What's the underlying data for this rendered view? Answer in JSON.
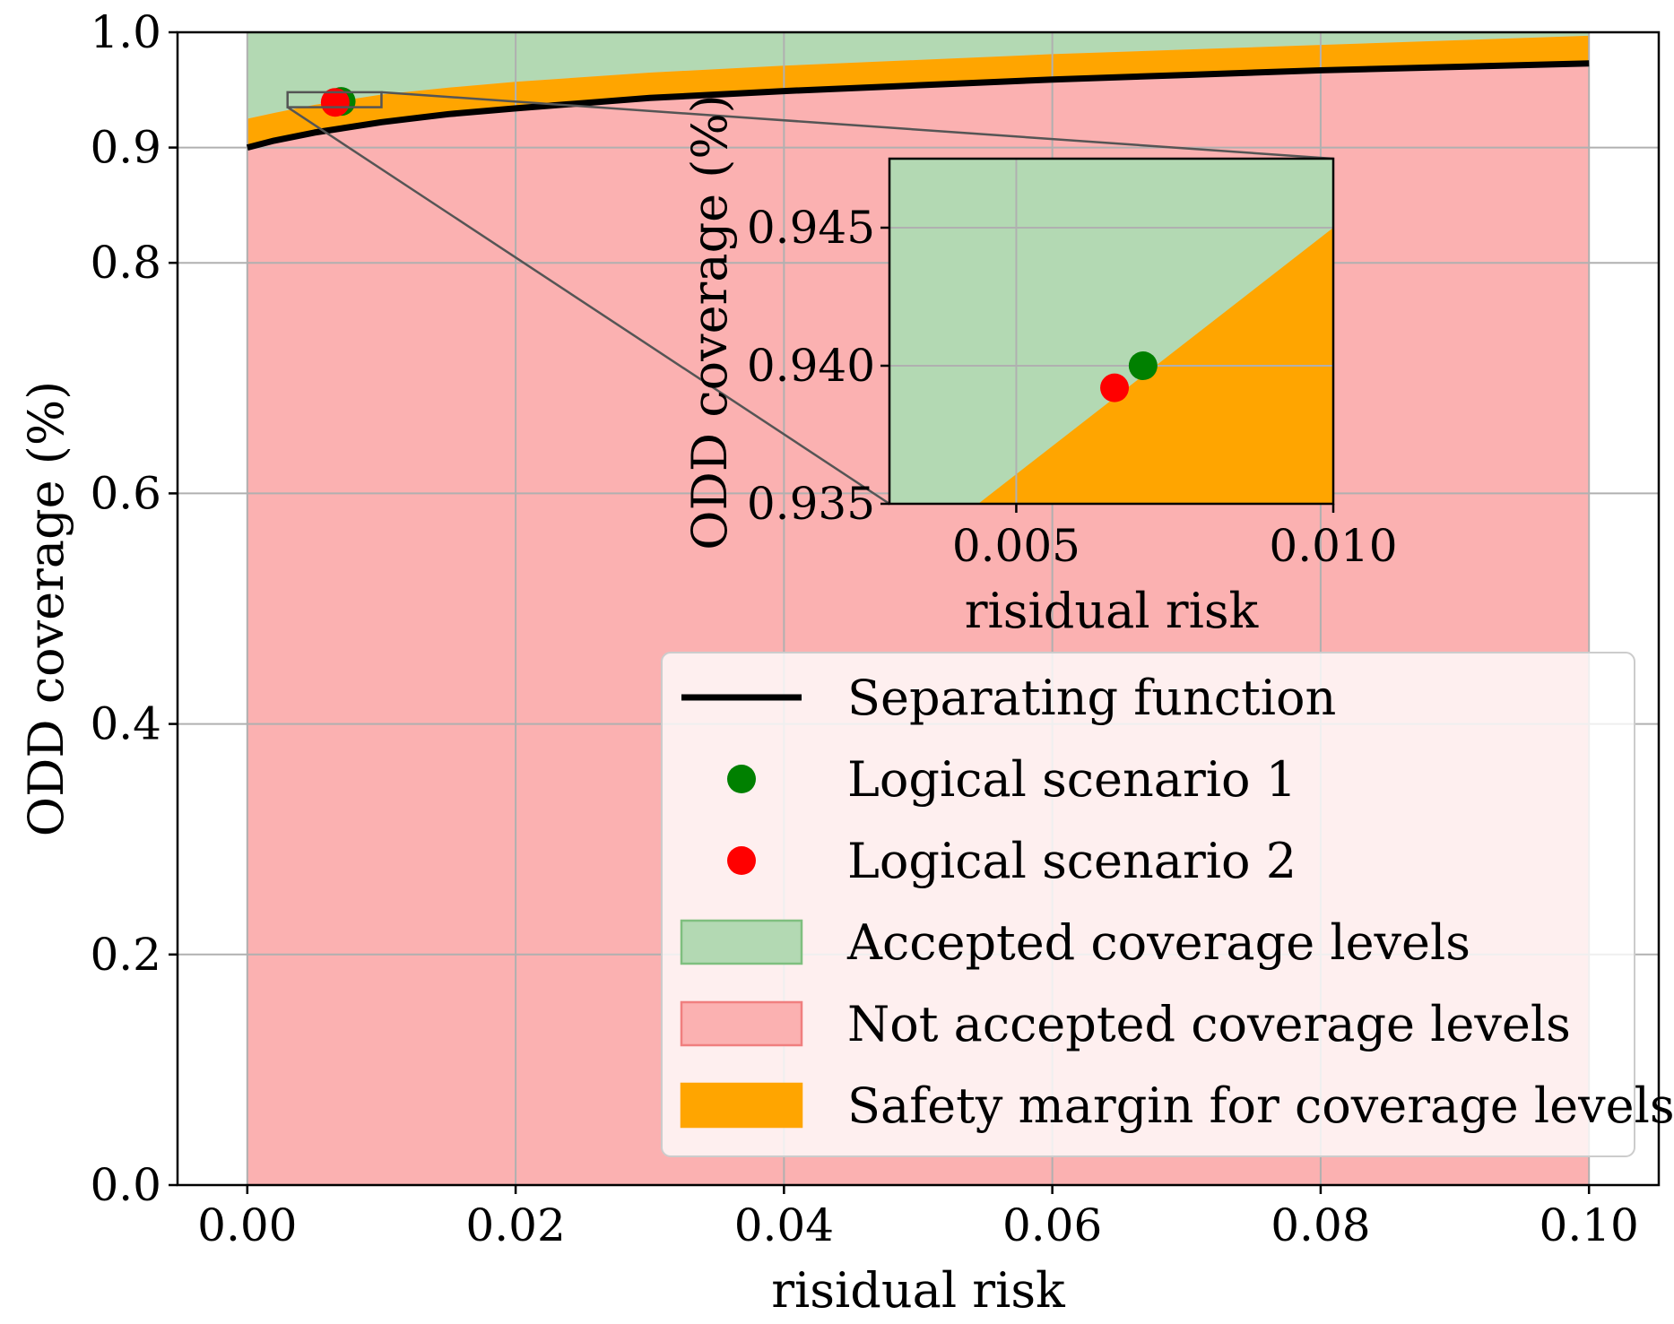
{
  "chart_data": {
    "type": "line",
    "main": {
      "xlabel": "risidual risk",
      "ylabel": "ODD coverage (%)",
      "xlim": [
        -0.0052,
        0.1052
      ],
      "ylim": [
        0.0,
        1.0
      ],
      "x_tick_values": [
        0.0,
        0.02,
        0.04,
        0.06,
        0.08,
        0.1
      ],
      "x_tick_labels": [
        "0.00",
        "0.02",
        "0.04",
        "0.06",
        "0.08",
        "0.10"
      ],
      "y_tick_values": [
        0.0,
        0.2,
        0.4,
        0.6,
        0.8,
        0.9,
        1.0
      ],
      "y_tick_labels": [
        "0.0",
        "0.2",
        "0.4",
        "0.6",
        "0.8",
        "0.9",
        "1.0"
      ],
      "grid": true,
      "shaded_x_range": [
        0.0,
        0.1
      ],
      "separating_function": {
        "x": [
          0.0,
          0.002,
          0.005,
          0.01,
          0.015,
          0.02,
          0.03,
          0.04,
          0.05,
          0.06,
          0.07,
          0.08,
          0.09,
          0.1
        ],
        "y": [
          0.9,
          0.906,
          0.913,
          0.922,
          0.929,
          0.934,
          0.943,
          0.949,
          0.954,
          0.959,
          0.963,
          0.967,
          0.97,
          0.973
        ]
      },
      "safety_margin_upper": {
        "x": [
          0.0,
          0.002,
          0.005,
          0.01,
          0.015,
          0.02,
          0.03,
          0.04,
          0.05,
          0.06,
          0.07,
          0.08,
          0.09,
          0.1
        ],
        "y": [
          0.925,
          0.93,
          0.937,
          0.946,
          0.952,
          0.957,
          0.965,
          0.971,
          0.976,
          0.981,
          0.985,
          0.989,
          0.993,
          0.997
        ]
      },
      "zoom_box": {
        "x": [
          0.003,
          0.01
        ],
        "y": [
          0.935,
          0.948
        ]
      }
    },
    "inset": {
      "xlabel": "risidual risk",
      "ylabel": "ODD coverage (%)",
      "xlim": [
        0.003,
        0.01
      ],
      "ylim": [
        0.935,
        0.9475
      ],
      "x_tick_values": [
        0.005,
        0.01
      ],
      "x_tick_labels": [
        "0.005",
        "0.010"
      ],
      "y_tick_values": [
        0.935,
        0.94,
        0.945
      ],
      "y_tick_labels": [
        "0.935",
        "0.940",
        "0.945"
      ],
      "grid": true,
      "margin_boundary": {
        "x": [
          0.0044,
          0.01
        ],
        "y": [
          0.935,
          0.945
        ]
      }
    },
    "points": [
      {
        "name": "Logical scenario 1",
        "x": 0.007,
        "y": 0.94,
        "color": "#008000"
      },
      {
        "name": "Logical scenario 2",
        "x": 0.00655,
        "y": 0.9392,
        "color": "#ff0000"
      }
    ],
    "legend": {
      "placement": "lower-right",
      "entries": [
        {
          "label": "Separating function",
          "kind": "line",
          "color": "#000000"
        },
        {
          "label": "Logical scenario 1",
          "kind": "dot",
          "color": "#008000"
        },
        {
          "label": "Logical scenario 2",
          "kind": "dot",
          "color": "#ff0000"
        },
        {
          "label": "Accepted coverage levels",
          "kind": "patch",
          "color": "#b3d9b3",
          "edge": "#7fbf7f"
        },
        {
          "label": "Not accepted coverage levels",
          "kind": "patch",
          "color": "#fbb1b1",
          "edge": "#f07f7f"
        },
        {
          "label": "Safety margin for coverage levels",
          "kind": "patch",
          "color": "#ffa500",
          "edge": "#ffa500"
        }
      ]
    },
    "colors": {
      "accepted": "#b3d9b3",
      "not_accepted": "#fbb1b1",
      "safety_margin": "#ffa500",
      "grid": "#b0b0b0"
    }
  }
}
